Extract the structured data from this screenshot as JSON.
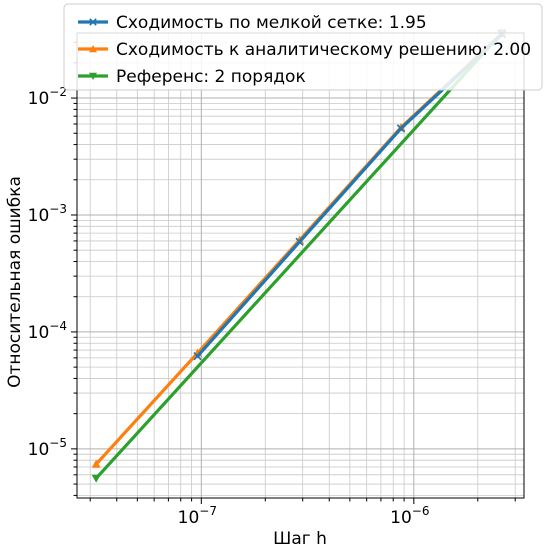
{
  "chart_data": {
    "type": "line",
    "xscale": "log",
    "yscale": "log",
    "xlabel": "Шаг h",
    "ylabel": "Относительная ошибка",
    "xlim": [
      2.6e-08,
      3.3e-06
    ],
    "ylim": [
      3.8e-06,
      0.036
    ],
    "grid": {
      "major": true,
      "minor": true
    },
    "legend_position": "top",
    "x_ticks": [
      {
        "value": 1e-07,
        "label": "10",
        "exp": "−7"
      },
      {
        "value": 1e-06,
        "label": "10",
        "exp": "−6"
      }
    ],
    "y_ticks": [
      {
        "value": 1e-05,
        "label": "10",
        "exp": "−5"
      },
      {
        "value": 0.0001,
        "label": "10",
        "exp": "−4"
      },
      {
        "value": 0.001,
        "label": "10",
        "exp": "−3"
      },
      {
        "value": 0.01,
        "label": "10",
        "exp": "−2"
      }
    ],
    "series": [
      {
        "name": "Сходимость по мелкой сетке: 1.95",
        "color": "#1f77b4",
        "marker": "x",
        "x": [
          9.6e-08,
          2.9e-07,
          8.7e-07,
          2.6e-06
        ],
        "y": [
          6.2e-05,
          0.00059,
          0.0055,
          0.035
        ]
      },
      {
        "name": "Сходимость к аналитическому решению: 2.00",
        "color": "#ff7f0e",
        "marker": "triangle-up",
        "x": [
          3.2e-08,
          9.6e-08,
          2.9e-07,
          8.7e-07,
          2.6e-06
        ],
        "y": [
          7.4e-06,
          6.6e-05,
          0.00061,
          0.0056,
          0.036
        ]
      },
      {
        "name": "Референс: 2 порядок",
        "color": "#2ca02c",
        "marker": "triangle-down",
        "x": [
          3.2e-08,
          2.6e-06
        ],
        "y": [
          5.6e-06,
          0.036
        ]
      }
    ]
  }
}
